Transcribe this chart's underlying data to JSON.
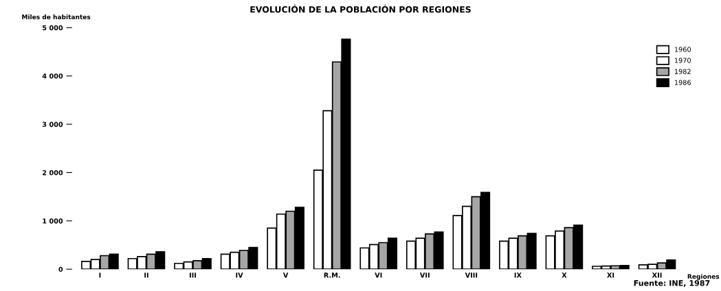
{
  "chart_data": {
    "type": "bar",
    "title": "EVOLUCIÓN DE LA POBLACIÓN POR REGIONES",
    "xlabel": "Regiones",
    "ylabel": "Miles de habitantes",
    "categories": [
      "I",
      "II",
      "III",
      "IV",
      "V",
      "R.M.",
      "VI",
      "VII",
      "VIII",
      "IX",
      "X",
      "XI",
      "XII"
    ],
    "series": [
      {
        "name": "1960",
        "color": "#ffffff",
        "values": [
          160,
          220,
          120,
          310,
          850,
          2050,
          440,
          580,
          1110,
          580,
          690,
          60,
          90
        ]
      },
      {
        "name": "1970",
        "color": "#ffffff",
        "values": [
          200,
          260,
          150,
          350,
          1140,
          3280,
          510,
          640,
          1300,
          640,
          790,
          65,
          100
        ]
      },
      {
        "name": "1982",
        "color": "#a6a6a6",
        "values": [
          280,
          310,
          175,
          390,
          1200,
          4290,
          550,
          730,
          1500,
          690,
          860,
          70,
          130
        ]
      },
      {
        "name": "1986",
        "color": "#000000",
        "values": [
          310,
          360,
          220,
          450,
          1280,
          4760,
          640,
          770,
          1590,
          740,
          910,
          75,
          190
        ]
      }
    ],
    "ylim": [
      0,
      5000
    ],
    "yticks": [
      0,
      {
        "value": 1000,
        "label": "1 000"
      },
      {
        "value": 2000,
        "label": "2 000"
      },
      {
        "value": 3000,
        "label": "3 000"
      },
      {
        "value": 4000,
        "label": "4 000"
      },
      {
        "value": 5000,
        "label": "5 000"
      }
    ],
    "grid": false,
    "legend": "top right",
    "annotations": [
      "Fuente: INE, 1987"
    ]
  }
}
